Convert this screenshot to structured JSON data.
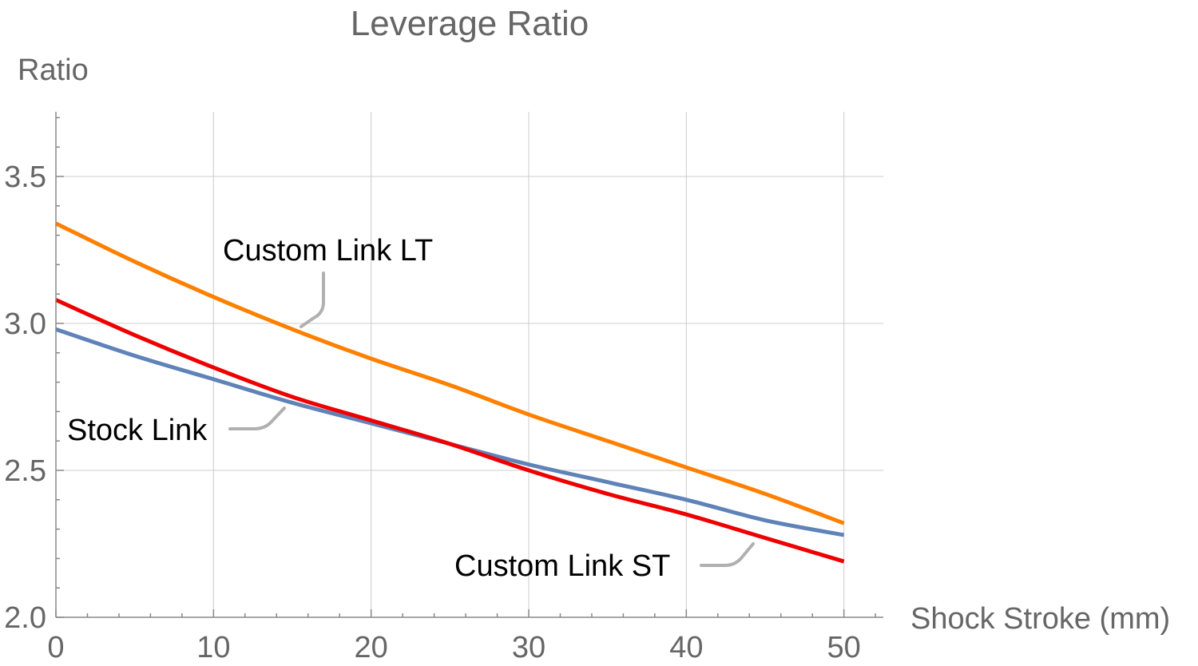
{
  "chart_data": {
    "type": "line",
    "title": "Leverage Ratio",
    "xlabel": "Shock Stroke (mm)",
    "ylabel": "Ratio",
    "xlim": [
      0,
      52.5
    ],
    "ylim": [
      2.0,
      3.72
    ],
    "xticks": [
      0,
      10,
      20,
      30,
      40,
      50
    ],
    "xtick_labels": [
      "0",
      "10",
      "20",
      "30",
      "40",
      "50"
    ],
    "yticks": [
      2.0,
      2.5,
      3.0,
      3.5
    ],
    "ytick_labels": [
      "2.0",
      "2.5",
      "3.0",
      "3.5"
    ],
    "grid": true,
    "legend": "inline callout labels",
    "series": [
      {
        "name": "Custom Link LT",
        "color": "#ff8000",
        "x": [
          0,
          5,
          10,
          15,
          20,
          25,
          30,
          35,
          40,
          45,
          50
        ],
        "y": [
          3.34,
          3.21,
          3.09,
          2.98,
          2.88,
          2.79,
          2.69,
          2.6,
          2.51,
          2.42,
          2.32
        ]
      },
      {
        "name": "Stock Link",
        "color": "#5f83b8",
        "x": [
          0,
          5,
          10,
          15,
          20,
          25,
          30,
          35,
          40,
          45,
          50
        ],
        "y": [
          2.98,
          2.89,
          2.81,
          2.73,
          2.66,
          2.59,
          2.52,
          2.46,
          2.4,
          2.33,
          2.28
        ]
      },
      {
        "name": "Custom Link ST",
        "color": "#ee0000",
        "x": [
          0,
          5,
          10,
          15,
          20,
          25,
          30,
          35,
          40,
          45,
          50
        ],
        "y": [
          3.08,
          2.96,
          2.85,
          2.75,
          2.67,
          2.59,
          2.5,
          2.42,
          2.35,
          2.27,
          2.19
        ]
      }
    ]
  }
}
